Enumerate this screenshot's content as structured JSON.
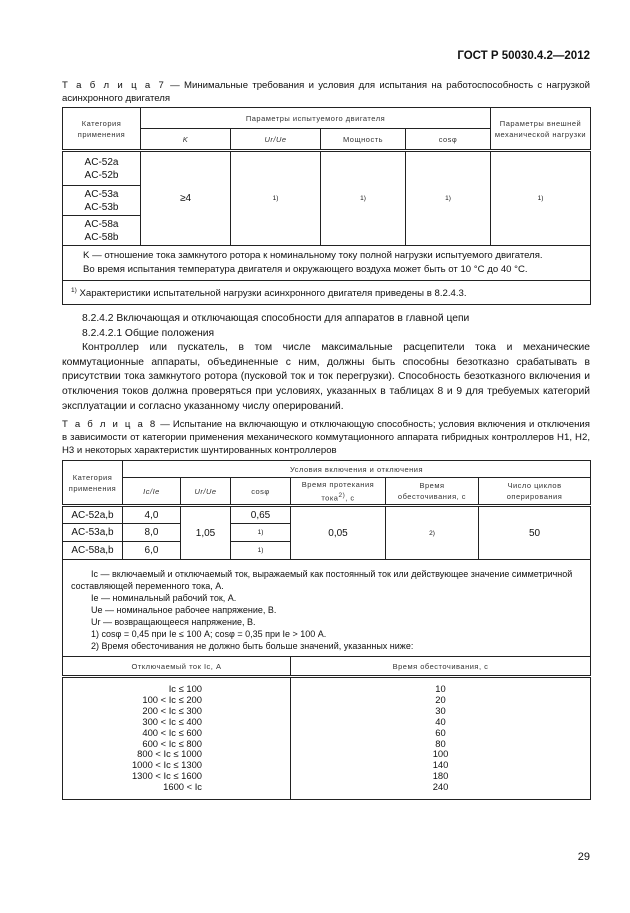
{
  "header": "ГОСТ Р 50030.4.2—2012",
  "table7": {
    "caption_label": "Т а б л и ц а  7",
    "caption_text": " — Минимальные требования и условия для испытания на работоспособность с нагрузкой асинхронного двигателя",
    "col_category": "Категория применения",
    "col_motor_params": "Параметры испытуемого двигателя",
    "col_k": "K",
    "col_u": "Ur/Ue",
    "col_power": "Мощность",
    "col_cos": "cosφ",
    "col_external": "Параметры внешней механической нагрузки",
    "rows": [
      "AC-52a\nAC-52b",
      "AC-53a\nAC-53b",
      "AC-58a\nAC-58b"
    ],
    "k_value": "≥4",
    "footnote_ref": "1)",
    "note1": "K — отношение тока замкнутого ротора к номинальному току полной нагрузки испытуемого двигателя.",
    "note2": "Во время испытания температура двигателя и окружающего воздуха может быть от 10 °C до 40 °C.",
    "footnote": "Характеристики испытательной нагрузки асинхронного двигателя приведены в 8.2.4.3."
  },
  "section": {
    "h1": "8.2.4.2 Включающая и отключающая способности для аппаратов в главной цепи",
    "h2": "8.2.4.2.1 Общие положения",
    "p1": "Контроллер или пускатель, в том числе максимальные расцепители тока и механические коммутационные аппараты, объединенные с ним, должны быть способны безотказно срабатывать в присутствии тока замкнутого ротора (пусковой ток и ток перегрузки). Способность безотказного включения и отключения токов должна проверяться при условиях, указанных в таблицах 8 и 9 для требуемых категорий эксплуатации и согласно указанному числу оперирований."
  },
  "table8": {
    "caption_label": "Т а б л и ц а  8",
    "caption_text": " — Испытание на включающую и отключающую способность; условия включения и отключения в зависимости от категории применения  механического коммутационного аппарата гибридных контроллеров H1, H2, H3 и  некоторых характеристик шунтированных контроллеров",
    "col_category": "Категория применения",
    "col_conditions": "Условия включения и отключения",
    "col_ic_ie": "Ic/Ie",
    "col_u": "Ur/Ue",
    "col_cos": "cosφ",
    "col_time": "Время протекания тока",
    "col_time_suffix": ", c",
    "col_deenergize": "Время обесточивания, с",
    "col_cycles": "Число циклов оперирования",
    "rows": [
      {
        "category": "AC-52a,b",
        "ic_ie": "4,0",
        "cos": "0,65"
      },
      {
        "category": "AC-53a,b",
        "ic_ie": "8,0",
        "cos": "1)"
      },
      {
        "category": "AC-58a,b",
        "ic_ie": "6,0",
        "cos": "1)"
      }
    ],
    "u_value": "1,05",
    "time_value": "0,05",
    "deenergize_value": "2)",
    "cycles_value": "50",
    "notes": [
      "Ic — включаемый и отключаемый ток, выражаемый как постоянный ток или действующее значение симметричной составляющей переменного тока, А.",
      "Ie — номинальный рабочий ток, А.",
      "Ue — номинальное рабочее напряжение, В.",
      "Ur — возвращающееся напряжение, В.",
      "1) cosφ = 0,45 при Ie ≤ 100 А; cosφ = 0,35 при Ie > 100 А.",
      "2) Время обесточивания не должно быть больше значений, указанных ниже:"
    ],
    "sub_col_current": "Отключаемый ток Ic, А",
    "sub_col_time": "Время обесточивания, с",
    "sub_rows": [
      {
        "current": "Ic ≤ 100",
        "time": "10"
      },
      {
        "current": "100 < Ic ≤ 200",
        "time": "20"
      },
      {
        "current": "200 < Ic ≤ 300",
        "time": "30"
      },
      {
        "current": "300 < Ic ≤ 400",
        "time": "40"
      },
      {
        "current": "400 < Ic ≤ 600",
        "time": "60"
      },
      {
        "current": "600 < Ic ≤ 800",
        "time": "80"
      },
      {
        "current": "800 < Ic ≤ 1000",
        "time": "100"
      },
      {
        "current": "1000 < Ic ≤ 1300",
        "time": "140"
      },
      {
        "current": "1300 < Ic ≤ 1600",
        "time": "180"
      },
      {
        "current": "1600 < Ic",
        "time": "240"
      }
    ]
  },
  "page_number": "29"
}
